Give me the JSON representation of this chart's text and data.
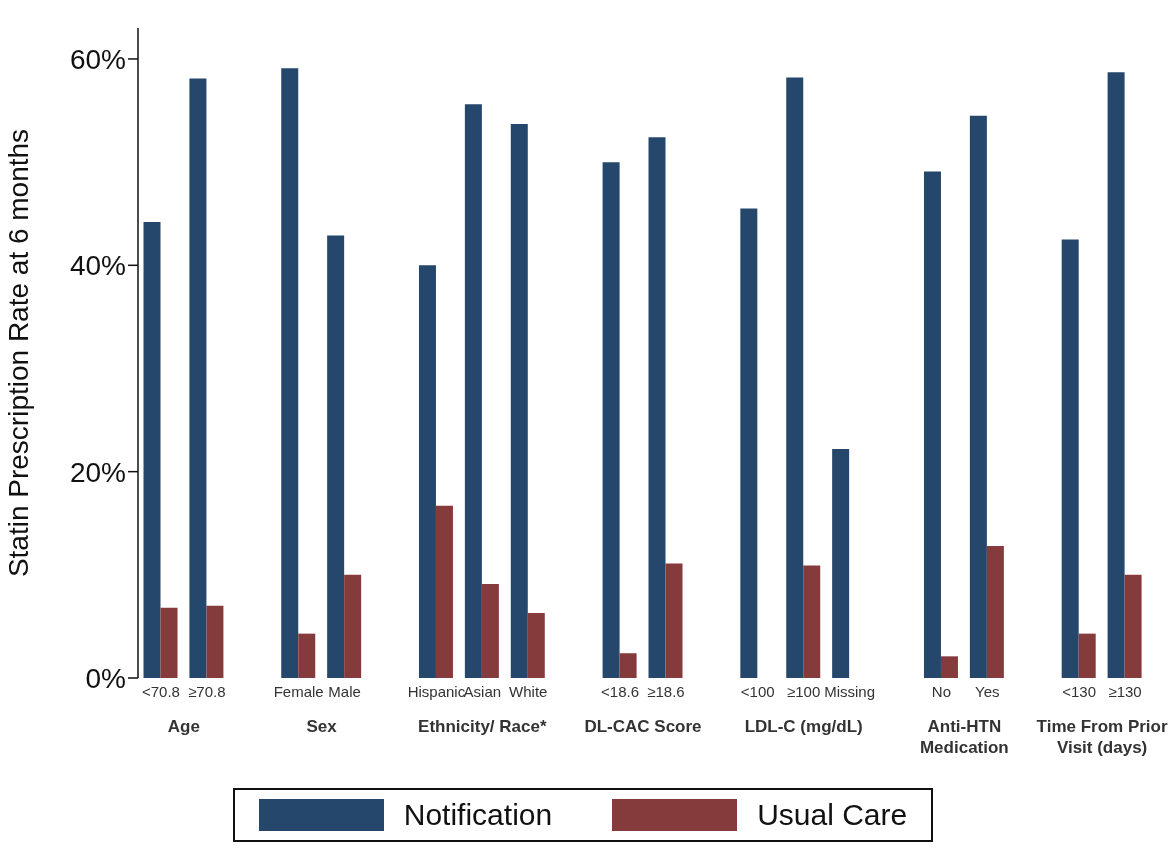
{
  "chart_data": {
    "type": "bar",
    "ylabel": "Statin Prescription Rate at 6 months",
    "categories": [
      "<70.8",
      "≥70.8",
      null,
      "Female",
      "Male",
      null,
      "Hispanic",
      "Asian",
      "White",
      null,
      "<18.6",
      "≥18.6",
      null,
      "<100",
      "≥100",
      "Missing",
      null,
      "No",
      "Yes",
      null,
      "<130",
      "≥130"
    ],
    "series": [
      {
        "name": "Notification",
        "color": "#25476b",
        "values": [
          44.2,
          58.1,
          null,
          59.1,
          42.9,
          null,
          40.0,
          55.6,
          53.7,
          null,
          50.0,
          52.4,
          null,
          45.5,
          58.2,
          22.2,
          null,
          49.1,
          54.5,
          null,
          42.5,
          58.7
        ]
      },
      {
        "name": "Usual Care",
        "color": "#853a3c",
        "values": [
          6.8,
          7.0,
          null,
          4.3,
          10.0,
          null,
          16.7,
          9.1,
          6.3,
          null,
          2.4,
          11.1,
          null,
          null,
          10.9,
          null,
          null,
          2.1,
          12.8,
          null,
          4.3,
          10.0
        ]
      }
    ],
    "annotations": [
      "Age",
      "Sex",
      "Ethnicity/ Race*",
      "DL-CAC Score",
      "LDL-C (mg/dL)",
      "Anti-HTN Medication",
      "Time From Prior Visit (days)"
    ],
    "ylim": [
      0,
      63
    ],
    "yticks": [
      {
        "value": 0,
        "label": "0%"
      },
      {
        "value": 20,
        "label": "20%"
      },
      {
        "value": 40,
        "label": "40%"
      },
      {
        "value": 60,
        "label": "60%"
      }
    ],
    "grid": false,
    "legend": "bottom"
  }
}
